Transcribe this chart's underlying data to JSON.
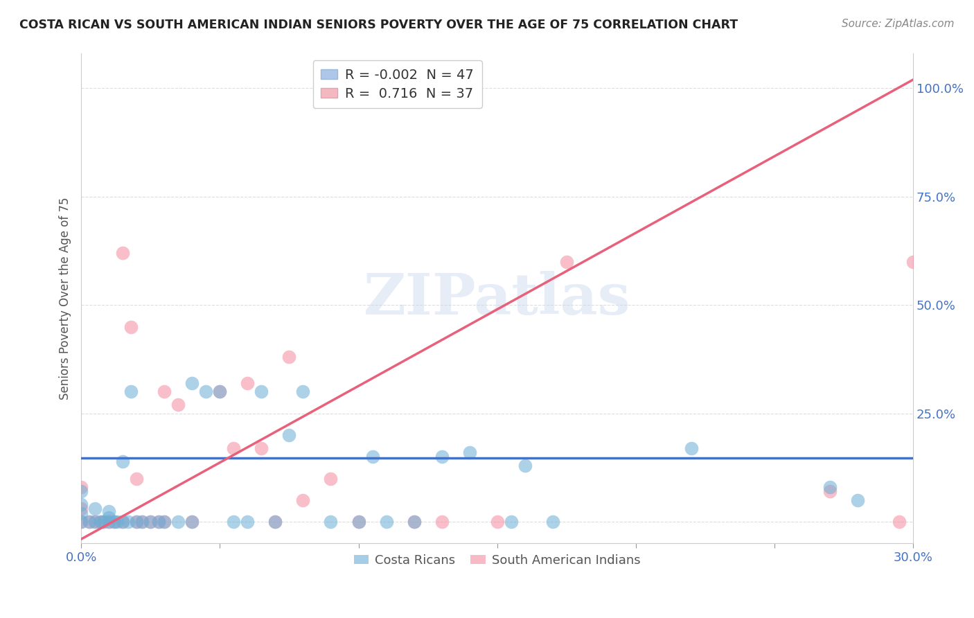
{
  "title": "COSTA RICAN VS SOUTH AMERICAN INDIAN SENIORS POVERTY OVER THE AGE OF 75 CORRELATION CHART",
  "source": "Source: ZipAtlas.com",
  "ylabel": "Seniors Poverty Over the Age of 75",
  "xlim": [
    0.0,
    0.3
  ],
  "ylim": [
    -0.05,
    1.08
  ],
  "xticks": [
    0.0,
    0.05,
    0.1,
    0.15,
    0.2,
    0.25,
    0.3
  ],
  "xticklabels": [
    "0.0%",
    "",
    "",
    "",
    "",
    "",
    "30.0%"
  ],
  "yticks": [
    0.0,
    0.25,
    0.5,
    0.75,
    1.0
  ],
  "yticklabels": [
    "",
    "25.0%",
    "50.0%",
    "75.0%",
    "100.0%"
  ],
  "legend_entry1": {
    "color": "#aec6e8",
    "R": "-0.002",
    "N": "47",
    "label": "Costa Ricans"
  },
  "legend_entry2": {
    "color": "#f4b8c1",
    "R": "0.716",
    "N": "37",
    "label": "South American Indians"
  },
  "costa_rican_color": "#6aaed6",
  "south_american_color": "#f48ca0",
  "trend_blue": "#4472c4",
  "trend_pink": "#e8607a",
  "watermark_text": "ZIPatlas",
  "watermark_color": "#c8d8ee",
  "background_color": "#ffffff",
  "grid_color": "#dddddd",
  "tick_color": "#4472c4",
  "label_color": "#555555",
  "title_color": "#222222",
  "source_color": "#888888",
  "costa_rican_x": [
    0.0,
    0.0,
    0.0,
    0.0,
    0.003,
    0.005,
    0.005,
    0.007,
    0.008,
    0.01,
    0.01,
    0.01,
    0.012,
    0.013,
    0.015,
    0.015,
    0.017,
    0.018,
    0.02,
    0.022,
    0.025,
    0.028,
    0.03,
    0.035,
    0.04,
    0.04,
    0.045,
    0.05,
    0.055,
    0.06,
    0.065,
    0.07,
    0.075,
    0.08,
    0.09,
    0.1,
    0.105,
    0.11,
    0.12,
    0.13,
    0.14,
    0.155,
    0.16,
    0.17,
    0.22,
    0.27,
    0.28
  ],
  "costa_rican_y": [
    0.0,
    0.02,
    0.04,
    0.07,
    0.0,
    0.0,
    0.03,
    0.0,
    0.0,
    0.0,
    0.01,
    0.025,
    0.0,
    0.0,
    0.0,
    0.14,
    0.0,
    0.3,
    0.0,
    0.0,
    0.0,
    0.0,
    0.0,
    0.0,
    0.0,
    0.32,
    0.3,
    0.3,
    0.0,
    0.0,
    0.3,
    0.0,
    0.2,
    0.3,
    0.0,
    0.0,
    0.15,
    0.0,
    0.0,
    0.15,
    0.16,
    0.0,
    0.13,
    0.0,
    0.17,
    0.08,
    0.05
  ],
  "south_american_x": [
    0.0,
    0.0,
    0.0,
    0.003,
    0.005,
    0.007,
    0.008,
    0.01,
    0.012,
    0.015,
    0.015,
    0.018,
    0.02,
    0.02,
    0.022,
    0.025,
    0.028,
    0.03,
    0.03,
    0.035,
    0.04,
    0.05,
    0.055,
    0.06,
    0.065,
    0.07,
    0.075,
    0.08,
    0.09,
    0.1,
    0.12,
    0.13,
    0.15,
    0.175,
    0.27,
    0.295,
    0.3
  ],
  "south_american_y": [
    0.0,
    0.03,
    0.08,
    0.0,
    0.0,
    0.0,
    0.0,
    0.0,
    0.0,
    0.0,
    0.62,
    0.45,
    0.0,
    0.1,
    0.0,
    0.0,
    0.0,
    0.0,
    0.3,
    0.27,
    0.0,
    0.3,
    0.17,
    0.32,
    0.17,
    0.0,
    0.38,
    0.05,
    0.1,
    0.0,
    0.0,
    0.0,
    0.0,
    0.6,
    0.07,
    0.0,
    0.6
  ],
  "trend_blue_y0": 0.148,
  "trend_blue_y1": 0.148,
  "trend_pink_x0": 0.0,
  "trend_pink_y0": -0.04,
  "trend_pink_x1": 0.3,
  "trend_pink_y1": 1.02
}
